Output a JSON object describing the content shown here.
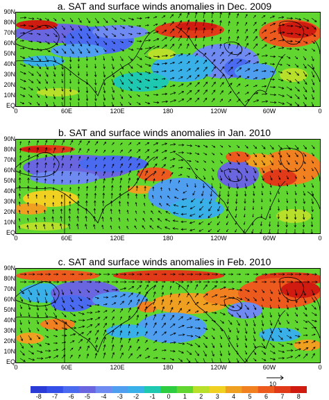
{
  "panels": [
    {
      "title": "a. SAT and surface winds anomalies in Dec. 2009"
    },
    {
      "title": "b. SAT and surface winds anomalies in Jan. 2010"
    },
    {
      "title": "c. SAT and surface winds anomalies in Feb. 2010"
    }
  ],
  "lat_labels": [
    "90N",
    "80N",
    "70N",
    "60N",
    "50N",
    "40N",
    "30N",
    "20N",
    "10N",
    "EQ"
  ],
  "lon_labels": [
    "0",
    "60E",
    "120E",
    "180",
    "120W",
    "60W",
    "0"
  ],
  "colorbar": {
    "labels": [
      "-8",
      "-7",
      "-6",
      "-5",
      "-4",
      "-3",
      "-2",
      "-1",
      "0",
      "1",
      "2",
      "3",
      "4",
      "5",
      "6",
      "7",
      "8"
    ],
    "colors": [
      "#2a3bd6",
      "#3550e8",
      "#4a6bf0",
      "#6a66e0",
      "#6f8af0",
      "#4f9ef0",
      "#3ab0e8",
      "#1fc8b0",
      "#2ecc40",
      "#62d630",
      "#b8e02a",
      "#f0d020",
      "#f0a020",
      "#f08020",
      "#ec5a1e",
      "#e03a18",
      "#d01c10"
    ],
    "reference_vector": "10"
  }
}
